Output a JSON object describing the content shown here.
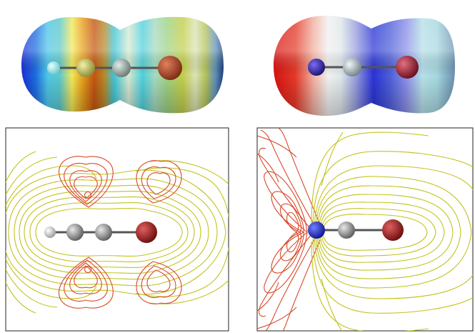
{
  "figure": {
    "panels": [
      {
        "id": "top-left",
        "kind": "electrostatic-potential-surface",
        "atoms": [
          {
            "element": "H",
            "color": "#a6f0f2"
          },
          {
            "element": "C",
            "color": "#c8c86a"
          },
          {
            "element": "C",
            "color": "#9aa6a0"
          },
          {
            "element": "Br",
            "color": "#b3452a"
          }
        ]
      },
      {
        "id": "top-right",
        "kind": "electrostatic-potential-surface",
        "atoms": [
          {
            "element": "N",
            "color": "#3a2fb0"
          },
          {
            "element": "C",
            "color": "#a3b0b3"
          },
          {
            "element": "Br",
            "color": "#a82232"
          }
        ]
      },
      {
        "id": "bottom-left",
        "kind": "contour-plot",
        "atoms": [
          {
            "element": "H",
            "color": "#e0e0e0"
          },
          {
            "element": "C",
            "color": "#9a9a9a"
          },
          {
            "element": "C",
            "color": "#9a9a9a"
          },
          {
            "element": "Br",
            "color": "#9e1c1c"
          }
        ]
      },
      {
        "id": "bottom-right",
        "kind": "contour-plot",
        "atoms": [
          {
            "element": "N",
            "color": "#1a2ad8"
          },
          {
            "element": "C",
            "color": "#9a9a9a"
          },
          {
            "element": "Br",
            "color": "#a41c1c"
          }
        ]
      }
    ],
    "colors": {
      "negative_contour": "#d9482a",
      "positive_contour": "#c2c21c",
      "frame": "#222222",
      "bond": "#555555"
    }
  }
}
